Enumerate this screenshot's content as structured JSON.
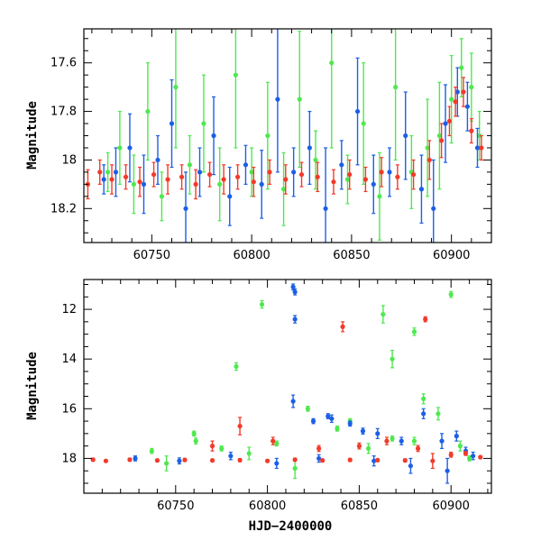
{
  "colors": {
    "green": "#4fe84f",
    "blue": "#1c5fe6",
    "red": "#f23a2a",
    "axis": "#000000"
  },
  "chart_data": [
    {
      "type": "scatter",
      "panel": "top",
      "title": "",
      "xlabel": "",
      "ylabel": "Magnitude",
      "xlim": [
        60716,
        60920
      ],
      "ylim": [
        18.34,
        17.46
      ],
      "y_inverted": true,
      "xticks": [
        60750,
        60800,
        60850,
        60900
      ],
      "yticks": [
        17.6,
        17.8,
        18,
        18.2
      ],
      "ytick_labels": [
        "17.6",
        "17.8",
        "18",
        "18.2"
      ],
      "error_bars": true,
      "grid": false,
      "legend": "none",
      "series": [
        {
          "color": "#4fe84f",
          "x": [
            60728,
            60734,
            60741,
            60748,
            60755,
            60762,
            60769,
            60776,
            60784,
            60792,
            60800,
            60808,
            60816,
            60824,
            60832,
            60840,
            60848,
            60856,
            60864,
            60872,
            60880,
            60888,
            60894,
            60900,
            60905,
            60910,
            60914
          ],
          "y": [
            18.05,
            17.95,
            18.1,
            17.8,
            18.15,
            17.7,
            18.02,
            17.85,
            18.1,
            17.65,
            18.05,
            17.9,
            18.12,
            17.75,
            18.0,
            17.6,
            18.08,
            17.85,
            18.15,
            17.7,
            18.05,
            17.95,
            17.9,
            17.75,
            17.62,
            17.7,
            17.9
          ],
          "yerr": [
            0.08,
            0.15,
            0.12,
            0.2,
            0.1,
            0.25,
            0.12,
            0.2,
            0.15,
            0.3,
            0.1,
            0.22,
            0.15,
            0.28,
            0.12,
            0.35,
            0.1,
            0.25,
            0.18,
            0.3,
            0.15,
            0.2,
            0.22,
            0.18,
            0.12,
            0.14,
            0.1
          ]
        },
        {
          "color": "#1c5fe6",
          "x": [
            60726,
            60732,
            60739,
            60746,
            60753,
            60760,
            60767,
            60774,
            60781,
            60789,
            60797,
            60805,
            60813,
            60821,
            60829,
            60837,
            60845,
            60853,
            60861,
            60869,
            60877,
            60885,
            60891,
            60897,
            60903,
            60908,
            60913
          ],
          "y": [
            18.08,
            18.05,
            17.95,
            18.1,
            18.0,
            17.85,
            18.2,
            18.05,
            17.9,
            18.15,
            18.02,
            18.1,
            17.75,
            18.05,
            17.95,
            18.2,
            18.02,
            17.8,
            18.1,
            18.05,
            17.9,
            18.12,
            18.2,
            17.85,
            17.72,
            17.78,
            17.95
          ],
          "yerr": [
            0.06,
            0.1,
            0.14,
            0.12,
            0.1,
            0.18,
            0.15,
            0.1,
            0.16,
            0.12,
            0.08,
            0.14,
            0.3,
            0.1,
            0.15,
            0.25,
            0.1,
            0.22,
            0.12,
            0.1,
            0.18,
            0.14,
            0.2,
            0.16,
            0.1,
            0.1,
            0.08
          ]
        },
        {
          "color": "#f23a2a",
          "x": [
            60718,
            60724,
            60730,
            60737,
            60744,
            60751,
            60758,
            60765,
            60772,
            60779,
            60786,
            60793,
            60801,
            60809,
            60817,
            60825,
            60833,
            60841,
            60849,
            60857,
            60865,
            60873,
            60881,
            60889,
            60895,
            60899,
            60902,
            60906,
            60910,
            60915
          ],
          "y": [
            18.1,
            18.05,
            18.08,
            18.07,
            18.09,
            18.06,
            18.08,
            18.07,
            18.1,
            18.06,
            18.08,
            18.07,
            18.09,
            18.05,
            18.08,
            18.06,
            18.07,
            18.09,
            18.06,
            18.08,
            18.05,
            18.07,
            18.06,
            18.0,
            17.92,
            17.84,
            17.76,
            17.72,
            17.88,
            17.95
          ],
          "yerr": [
            0.06,
            0.05,
            0.06,
            0.05,
            0.06,
            0.05,
            0.06,
            0.05,
            0.06,
            0.05,
            0.06,
            0.05,
            0.06,
            0.05,
            0.06,
            0.05,
            0.06,
            0.05,
            0.06,
            0.05,
            0.06,
            0.05,
            0.06,
            0.08,
            0.07,
            0.06,
            0.06,
            0.06,
            0.05,
            0.05
          ]
        }
      ]
    },
    {
      "type": "scatter",
      "panel": "bottom",
      "title": "",
      "xlabel": "HJD−2400000",
      "ylabel": "Magnitude",
      "xlim": [
        60700,
        60922
      ],
      "ylim": [
        19.4,
        10.8
      ],
      "y_inverted": true,
      "xticks": [
        60750,
        60800,
        60850,
        60900
      ],
      "yticks": [
        12,
        14,
        16,
        18
      ],
      "ytick_labels": [
        "12",
        "14",
        "16",
        "18"
      ],
      "error_bars": true,
      "grid": false,
      "legend": "none",
      "series": [
        {
          "color": "#4fe84f",
          "x": [
            60797,
            60783,
            60900,
            60863,
            60868,
            60880,
            60737,
            60761,
            60822,
            60845,
            60885,
            60760,
            60775,
            60805,
            60838,
            60868,
            60893,
            60905,
            60745,
            60790,
            60815,
            60855,
            60880,
            60910
          ],
          "y": [
            11.8,
            14.3,
            11.4,
            12.2,
            14.0,
            12.9,
            17.7,
            17.3,
            16.0,
            16.5,
            15.6,
            17.0,
            17.6,
            17.4,
            16.8,
            17.2,
            16.2,
            17.5,
            18.2,
            17.8,
            18.4,
            17.6,
            17.3,
            18.0
          ],
          "yerr": [
            0.15,
            0.15,
            0.12,
            0.35,
            0.35,
            0.15,
            0.1,
            0.12,
            0.1,
            0.1,
            0.2,
            0.1,
            0.1,
            0.1,
            0.1,
            0.1,
            0.25,
            0.2,
            0.3,
            0.25,
            0.4,
            0.2,
            0.15,
            0.1
          ]
        },
        {
          "color": "#1c5fe6",
          "x": [
            60814,
            60815,
            60815,
            60814,
            60825,
            60835,
            60833,
            60845,
            60852,
            60860,
            60873,
            60885,
            60895,
            60903,
            60908,
            60728,
            60752,
            60780,
            60805,
            60828,
            60858,
            60878,
            60898,
            60912
          ],
          "y": [
            11.1,
            11.3,
            12.4,
            15.7,
            16.5,
            16.4,
            16.3,
            16.6,
            16.9,
            17.0,
            17.3,
            16.2,
            17.3,
            17.1,
            17.7,
            18.0,
            18.1,
            17.9,
            18.2,
            18.0,
            18.1,
            18.3,
            18.5,
            17.9
          ],
          "yerr": [
            0.12,
            0.12,
            0.15,
            0.25,
            0.1,
            0.15,
            0.1,
            0.1,
            0.12,
            0.2,
            0.15,
            0.2,
            0.3,
            0.2,
            0.15,
            0.1,
            0.12,
            0.15,
            0.2,
            0.15,
            0.2,
            0.3,
            0.5,
            0.15
          ]
        },
        {
          "color": "#f23a2a",
          "x": [
            60841,
            60886,
            60785,
            60770,
            60803,
            60828,
            60850,
            60865,
            60882,
            60705,
            60712,
            60725,
            60740,
            60755,
            60770,
            60785,
            60800,
            60815,
            60830,
            60845,
            60860,
            60875,
            60890,
            60900,
            60908,
            60916
          ],
          "y": [
            12.7,
            12.4,
            16.7,
            17.5,
            17.3,
            17.6,
            17.5,
            17.3,
            17.6,
            18.05,
            18.1,
            18.05,
            18.08,
            18.06,
            18.08,
            18.07,
            18.1,
            18.05,
            18.08,
            18.06,
            18.07,
            18.08,
            18.1,
            17.85,
            17.8,
            17.95
          ],
          "yerr": [
            0.2,
            0.1,
            0.35,
            0.2,
            0.15,
            0.12,
            0.12,
            0.15,
            0.12,
            0.06,
            0.05,
            0.06,
            0.05,
            0.06,
            0.05,
            0.06,
            0.05,
            0.06,
            0.05,
            0.06,
            0.05,
            0.06,
            0.3,
            0.1,
            0.08,
            0.06
          ]
        }
      ]
    }
  ]
}
